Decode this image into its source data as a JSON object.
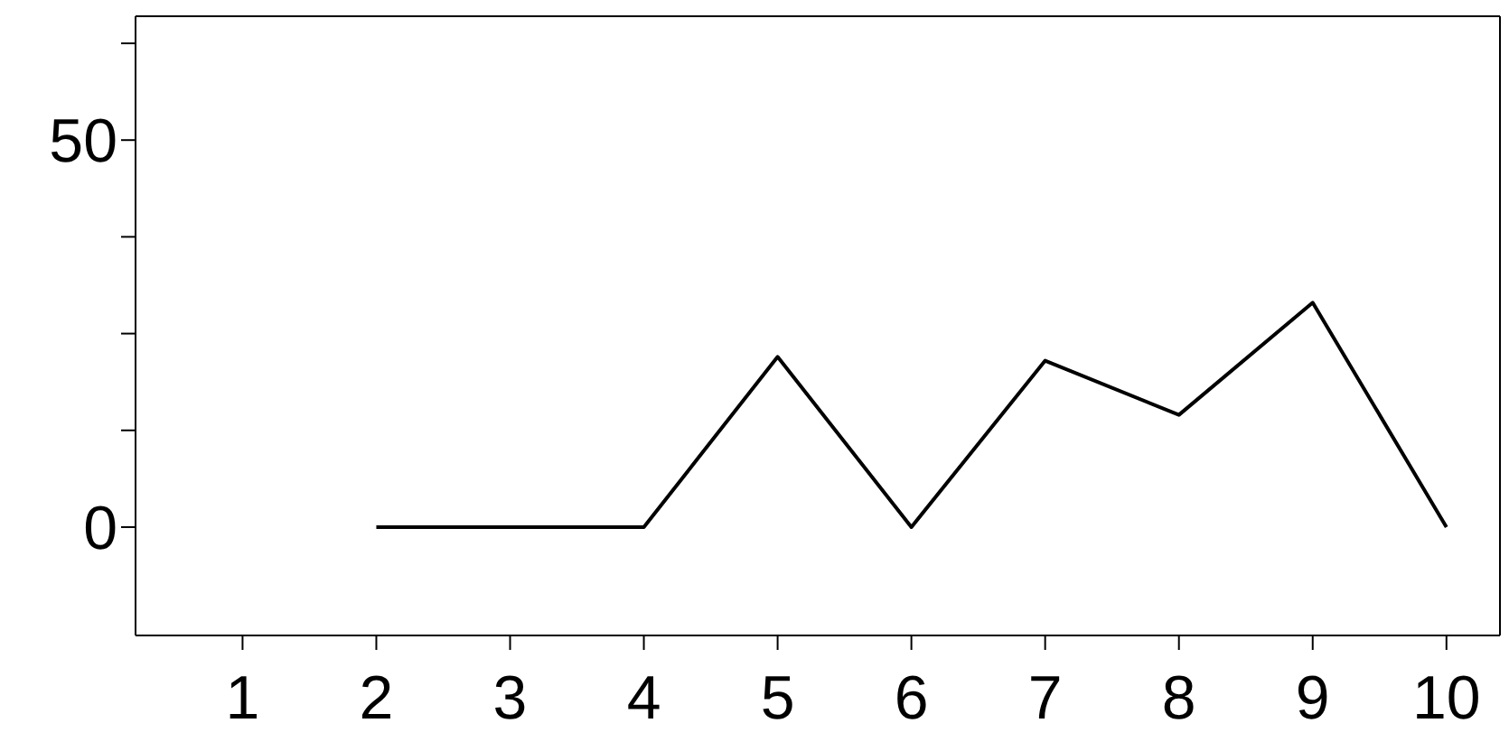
{
  "chart_data": {
    "type": "line",
    "x": [
      2,
      3,
      4,
      5,
      6,
      7,
      8,
      9,
      10
    ],
    "series": [
      {
        "color": "#000000",
        "values": [
          0,
          0,
          0,
          22,
          0,
          21.5,
          14.5,
          29,
          0
        ]
      }
    ],
    "xlim": [
      0.2,
      10.4
    ],
    "xticks": [
      1,
      2,
      3,
      4,
      5,
      6,
      7,
      8,
      9,
      10
    ],
    "ylim": [
      -14,
      66
    ],
    "yticks": [
      0,
      {
        "value": 12.5,
        "label": null
      },
      {
        "value": 25,
        "label": null
      },
      {
        "value": 37.5,
        "label": null
      },
      50,
      {
        "value": 62.5,
        "label": null
      }
    ],
    "grid": false,
    "legend": false,
    "marker": "none",
    "line_style": "solid"
  }
}
